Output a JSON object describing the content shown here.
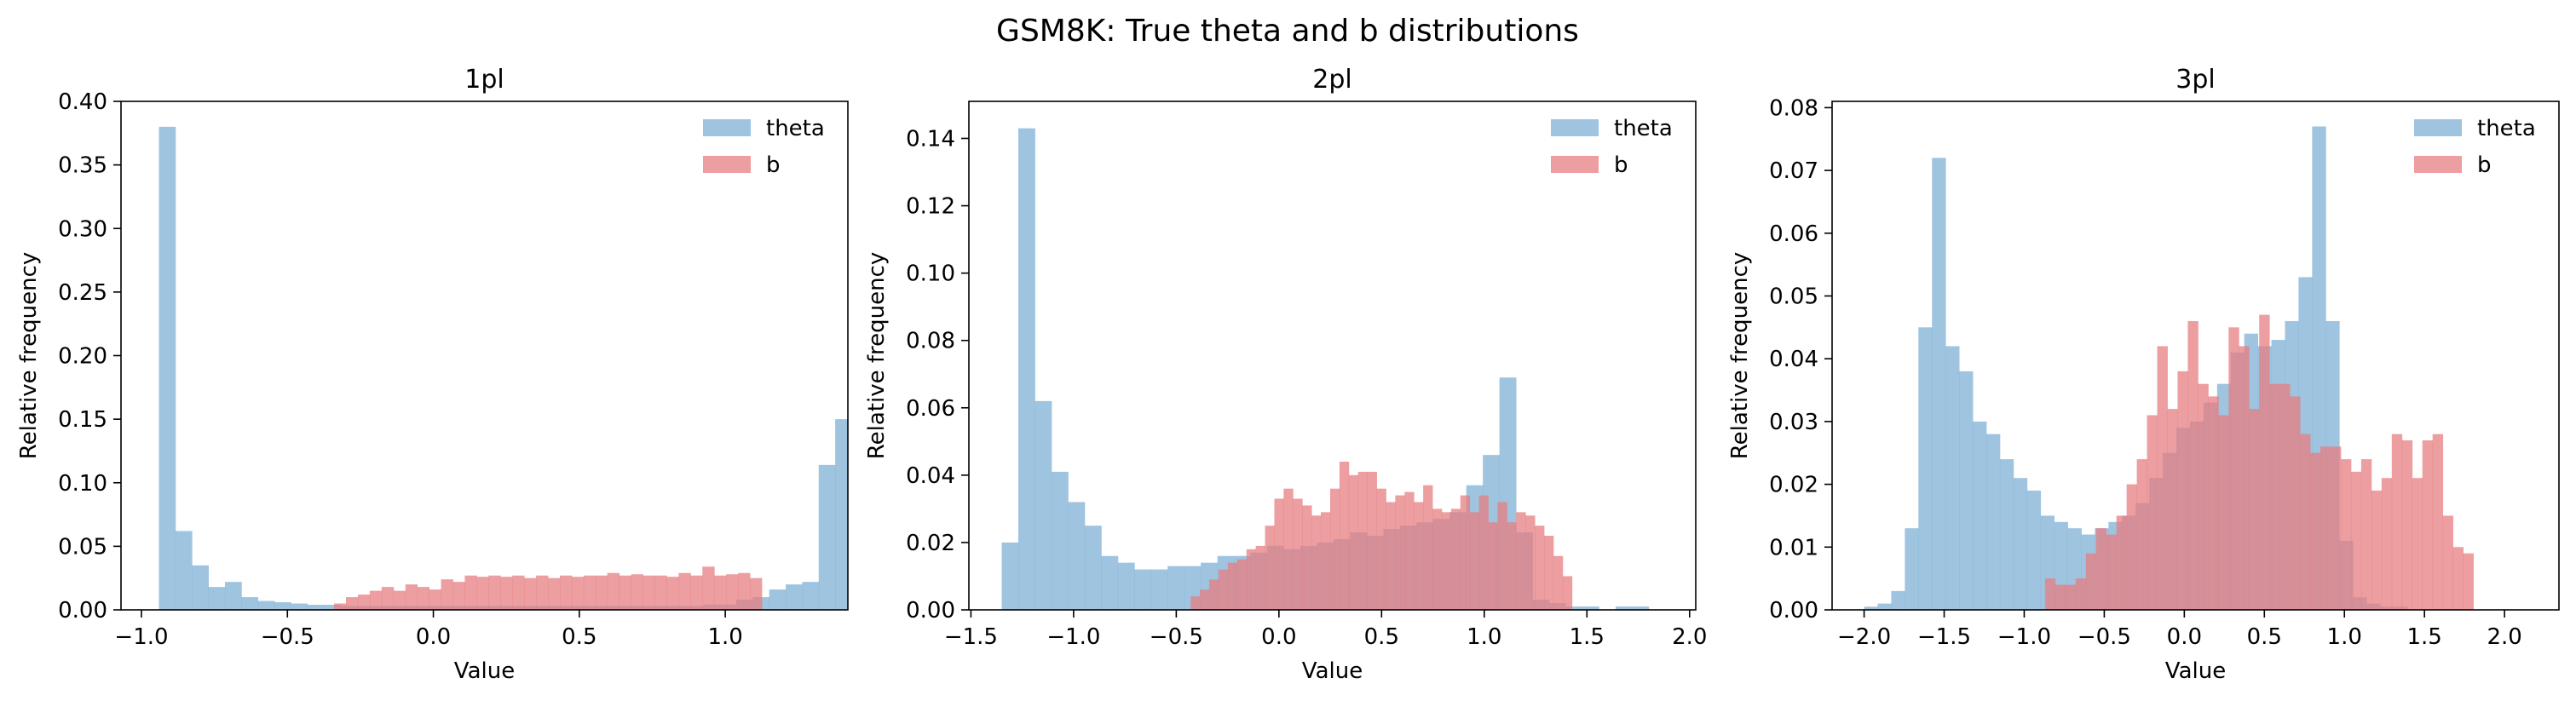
{
  "figure": {
    "title": "GSM8K: True theta and b distributions"
  },
  "colors": {
    "theta": "#7fb0d6",
    "b": "#e57d80"
  },
  "chart_data": [
    {
      "type": "bar",
      "title": "1pl",
      "xlabel": "Value",
      "ylabel": "Relative frequency",
      "xlim": [
        -1.07,
        1.42
      ],
      "ylim": [
        0,
        0.4
      ],
      "xticks": [
        -1.0,
        -0.5,
        0.0,
        0.5,
        1.0
      ],
      "xtick_labels": [
        "−1.0",
        "−0.5",
        "0.0",
        "0.5",
        "1.0"
      ],
      "yticks": [
        0,
        0.05,
        0.1,
        0.15,
        0.2,
        0.25,
        0.3,
        0.35,
        0.4
      ],
      "ytick_labels": [
        "0.00",
        "0.05",
        "0.10",
        "0.15",
        "0.20",
        "0.25",
        "0.30",
        "0.35",
        "0.40"
      ],
      "legend": "top-right",
      "series": [
        {
          "name": "theta",
          "color_key": "theta",
          "bin_start": -0.94,
          "bin_width": 0.0565,
          "values": [
            0.38,
            0.062,
            0.035,
            0.018,
            0.022,
            0.01,
            0.007,
            0.006,
            0.005,
            0.004,
            0.004,
            0.003,
            0.003,
            0.003,
            0.003,
            0.003,
            0.003,
            0.003,
            0.003,
            0.003,
            0.003,
            0.003,
            0.003,
            0.003,
            0.003,
            0.003,
            0.003,
            0.003,
            0.003,
            0.003,
            0.003,
            0.003,
            0.003,
            0.004,
            0.004,
            0.008,
            0.01,
            0.016,
            0.02,
            0.022,
            0.114,
            0.15
          ]
        },
        {
          "name": "b",
          "color_key": "b",
          "bin_start": -0.34,
          "bin_width": 0.0407,
          "values": [
            0.005,
            0.01,
            0.012,
            0.015,
            0.018,
            0.015,
            0.02,
            0.018,
            0.016,
            0.024,
            0.022,
            0.027,
            0.026,
            0.027,
            0.026,
            0.027,
            0.025,
            0.027,
            0.025,
            0.027,
            0.026,
            0.027,
            0.027,
            0.029,
            0.027,
            0.028,
            0.027,
            0.027,
            0.026,
            0.029,
            0.027,
            0.034,
            0.027,
            0.028,
            0.029,
            0.025
          ]
        }
      ]
    },
    {
      "type": "bar",
      "title": "2pl",
      "xlabel": "Value",
      "ylabel": "Relative frequency",
      "xlim": [
        -1.51,
        2.03
      ],
      "ylim": [
        0,
        0.151
      ],
      "xticks": [
        -1.5,
        -1.0,
        -0.5,
        0.0,
        0.5,
        1.0,
        1.5,
        2.0
      ],
      "xtick_labels": [
        "−1.5",
        "−1.0",
        "−0.5",
        "0.0",
        "0.5",
        "1.0",
        "1.5",
        "2.0"
      ],
      "yticks": [
        0,
        0.02,
        0.04,
        0.06,
        0.08,
        0.1,
        0.12,
        0.14
      ],
      "ytick_labels": [
        "0.00",
        "0.02",
        "0.04",
        "0.06",
        "0.08",
        "0.10",
        "0.12",
        "0.14"
      ],
      "legend": "top-right",
      "series": [
        {
          "name": "theta",
          "color_key": "theta",
          "bin_start": -1.35,
          "bin_width": 0.0808,
          "values": [
            0.02,
            0.143,
            0.062,
            0.041,
            0.032,
            0.025,
            0.016,
            0.014,
            0.012,
            0.012,
            0.013,
            0.013,
            0.014,
            0.016,
            0.016,
            0.017,
            0.019,
            0.018,
            0.019,
            0.02,
            0.021,
            0.023,
            0.022,
            0.024,
            0.025,
            0.026,
            0.027,
            0.029,
            0.037,
            0.046,
            0.069,
            0.023,
            0.003,
            0.002,
            0.001,
            0.001,
            0.0,
            0.001,
            0.001,
            0.0
          ]
        },
        {
          "name": "b",
          "color_key": "b",
          "bin_start": -0.43,
          "bin_width": 0.0453,
          "values": [
            0.004,
            0.006,
            0.009,
            0.012,
            0.014,
            0.015,
            0.018,
            0.019,
            0.025,
            0.033,
            0.036,
            0.033,
            0.031,
            0.028,
            0.029,
            0.036,
            0.044,
            0.04,
            0.041,
            0.041,
            0.036,
            0.032,
            0.034,
            0.035,
            0.032,
            0.037,
            0.03,
            0.029,
            0.03,
            0.034,
            0.029,
            0.034,
            0.026,
            0.032,
            0.026,
            0.029,
            0.028,
            0.025,
            0.022,
            0.016,
            0.01
          ]
        }
      ]
    },
    {
      "type": "bar",
      "title": "3pl",
      "xlabel": "Value",
      "ylabel": "Relative frequency",
      "xlim": [
        -2.2,
        2.34
      ],
      "ylim": [
        0,
        0.081
      ],
      "xticks": [
        -2.0,
        -1.5,
        -1.0,
        -0.5,
        0.0,
        0.5,
        1.0,
        1.5,
        2.0
      ],
      "xtick_labels": [
        "−2.0",
        "−1.5",
        "−1.0",
        "−0.5",
        "0.0",
        "0.5",
        "1.0",
        "1.5",
        "2.0"
      ],
      "yticks": [
        0,
        0.01,
        0.02,
        0.03,
        0.04,
        0.05,
        0.06,
        0.07,
        0.08
      ],
      "ytick_labels": [
        "0.00",
        "0.01",
        "0.02",
        "0.03",
        "0.04",
        "0.05",
        "0.06",
        "0.07",
        "0.08"
      ],
      "legend": "top-right",
      "series": [
        {
          "name": "theta",
          "color_key": "theta",
          "bin_start": -2.0,
          "bin_width": 0.0848,
          "values": [
            0.0005,
            0.001,
            0.003,
            0.013,
            0.045,
            0.072,
            0.042,
            0.038,
            0.03,
            0.028,
            0.024,
            0.021,
            0.019,
            0.015,
            0.014,
            0.013,
            0.012,
            0.013,
            0.014,
            0.015,
            0.017,
            0.021,
            0.025,
            0.029,
            0.03,
            0.033,
            0.036,
            0.041,
            0.044,
            0.042,
            0.043,
            0.046,
            0.053,
            0.077,
            0.046,
            0.011,
            0.002,
            0.001,
            0.0005,
            0.0005
          ]
        },
        {
          "name": "b",
          "color_key": "b",
          "bin_start": -0.87,
          "bin_width": 0.0637,
          "values": [
            0.005,
            0.004,
            0.004,
            0.005,
            0.009,
            0.013,
            0.012,
            0.015,
            0.02,
            0.024,
            0.031,
            0.042,
            0.032,
            0.038,
            0.046,
            0.036,
            0.034,
            0.031,
            0.045,
            0.042,
            0.032,
            0.047,
            0.036,
            0.036,
            0.034,
            0.028,
            0.025,
            0.026,
            0.026,
            0.024,
            0.022,
            0.024,
            0.019,
            0.021,
            0.028,
            0.027,
            0.021,
            0.027,
            0.028,
            0.015,
            0.01,
            0.009
          ]
        }
      ]
    }
  ]
}
